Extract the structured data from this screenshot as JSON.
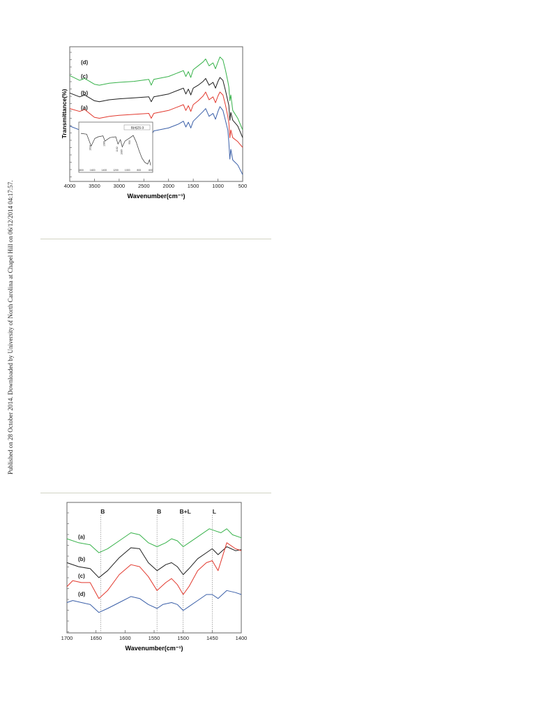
{
  "sidebar": {
    "text": "Published on 28 October 2014. Downloaded by University of North Carolina at Chapel Hill on 06/12/2014 04:17:57."
  },
  "chart_data": [
    {
      "type": "line",
      "xlabel": "Wavenumber(cm⁻¹)",
      "ylabel": "Transmittance(%)",
      "xlim": [
        4000,
        500
      ],
      "x_reversed": true,
      "xticks": [
        4000,
        3500,
        3000,
        2500,
        2000,
        1500,
        1000,
        500
      ],
      "grid": false,
      "colors": {
        "a": "#3a5fa8",
        "b": "#e2392e",
        "c": "#1e1e1e",
        "d": "#37b24a"
      },
      "series": [
        {
          "name": "(a)",
          "color": "#3a5fa8",
          "points": [
            [
              4000,
              42
            ],
            [
              3800,
              38
            ],
            [
              3700,
              40
            ],
            [
              3500,
              33
            ],
            [
              3400,
              32
            ],
            [
              3200,
              34
            ],
            [
              3000,
              35
            ],
            [
              2700,
              36
            ],
            [
              2400,
              37
            ],
            [
              2350,
              32
            ],
            [
              2300,
              37
            ],
            [
              2000,
              40
            ],
            [
              1800,
              44
            ],
            [
              1700,
              47
            ],
            [
              1650,
              41
            ],
            [
              1600,
              46
            ],
            [
              1550,
              40
            ],
            [
              1500,
              47
            ],
            [
              1400,
              52
            ],
            [
              1300,
              57
            ],
            [
              1250,
              60
            ],
            [
              1180,
              52
            ],
            [
              1100,
              55
            ],
            [
              1050,
              49
            ],
            [
              1000,
              57
            ],
            [
              960,
              62
            ],
            [
              900,
              58
            ],
            [
              850,
              48
            ],
            [
              800,
              38
            ],
            [
              780,
              25
            ],
            [
              760,
              8
            ],
            [
              740,
              18
            ],
            [
              700,
              7
            ],
            [
              600,
              2
            ],
            [
              500,
              -8
            ]
          ]
        },
        {
          "name": "(b)",
          "color": "#e2392e",
          "points": [
            [
              4000,
              60
            ],
            [
              3800,
              57
            ],
            [
              3700,
              59
            ],
            [
              3500,
              51
            ],
            [
              3400,
              50
            ],
            [
              3200,
              52
            ],
            [
              3000,
              53
            ],
            [
              2700,
              54
            ],
            [
              2400,
              55
            ],
            [
              2350,
              50
            ],
            [
              2300,
              55
            ],
            [
              2000,
              58
            ],
            [
              1800,
              62
            ],
            [
              1700,
              64
            ],
            [
              1650,
              58
            ],
            [
              1600,
              63
            ],
            [
              1550,
              57
            ],
            [
              1500,
              64
            ],
            [
              1400,
              68
            ],
            [
              1300,
              73
            ],
            [
              1250,
              77
            ],
            [
              1180,
              69
            ],
            [
              1100,
              72
            ],
            [
              1050,
              66
            ],
            [
              1000,
              73
            ],
            [
              960,
              77
            ],
            [
              900,
              74
            ],
            [
              850,
              64
            ],
            [
              800,
              52
            ],
            [
              780,
              45
            ],
            [
              760,
              30
            ],
            [
              740,
              38
            ],
            [
              700,
              30
            ],
            [
              600,
              26
            ],
            [
              500,
              20
            ]
          ]
        },
        {
          "name": "(c)",
          "color": "#1e1e1e",
          "points": [
            [
              4000,
              76
            ],
            [
              3800,
              72
            ],
            [
              3700,
              74
            ],
            [
              3500,
              68
            ],
            [
              3400,
              67
            ],
            [
              3200,
              69
            ],
            [
              3000,
              70
            ],
            [
              2700,
              71
            ],
            [
              2400,
              72
            ],
            [
              2350,
              67
            ],
            [
              2300,
              72
            ],
            [
              2000,
              75
            ],
            [
              1800,
              79
            ],
            [
              1700,
              81
            ],
            [
              1650,
              75
            ],
            [
              1600,
              80
            ],
            [
              1550,
              74
            ],
            [
              1500,
              81
            ],
            [
              1400,
              84
            ],
            [
              1300,
              88
            ],
            [
              1250,
              91
            ],
            [
              1180,
              84
            ],
            [
              1100,
              87
            ],
            [
              1050,
              81
            ],
            [
              1000,
              88
            ],
            [
              960,
              92
            ],
            [
              900,
              89
            ],
            [
              850,
              79
            ],
            [
              800,
              68
            ],
            [
              780,
              63
            ],
            [
              760,
              48
            ],
            [
              740,
              56
            ],
            [
              700,
              48
            ],
            [
              600,
              42
            ],
            [
              500,
              30
            ]
          ]
        },
        {
          "name": "(d)",
          "color": "#37b24a",
          "points": [
            [
              4000,
              94
            ],
            [
              3800,
              89
            ],
            [
              3700,
              91
            ],
            [
              3500,
              85
            ],
            [
              3400,
              84
            ],
            [
              3200,
              86
            ],
            [
              3000,
              87
            ],
            [
              2700,
              88
            ],
            [
              2400,
              90
            ],
            [
              2350,
              84
            ],
            [
              2300,
              90
            ],
            [
              2000,
              93
            ],
            [
              1800,
              97
            ],
            [
              1700,
              99
            ],
            [
              1650,
              93
            ],
            [
              1600,
              98
            ],
            [
              1550,
              92
            ],
            [
              1500,
              100
            ],
            [
              1400,
              104
            ],
            [
              1300,
              108
            ],
            [
              1250,
              111
            ],
            [
              1180,
              104
            ],
            [
              1100,
              107
            ],
            [
              1050,
              101
            ],
            [
              1000,
              108
            ],
            [
              960,
              113
            ],
            [
              900,
              110
            ],
            [
              850,
              100
            ],
            [
              800,
              88
            ],
            [
              780,
              82
            ],
            [
              760,
              68
            ],
            [
              740,
              74
            ],
            [
              700,
              58
            ],
            [
              600,
              50
            ],
            [
              500,
              38
            ]
          ]
        }
      ],
      "labels": [
        "(d)",
        "(c)",
        "(b)",
        "(a)"
      ],
      "inset": {
        "type": "line",
        "legend": "B(4)ZS-3",
        "tick_labels": [
          "1800",
          "1600",
          "1400",
          "1200",
          "1000",
          "800",
          "600"
        ],
        "peak_labels": [
          "1624",
          "1386",
          "1162",
          "1089",
          "950"
        ],
        "points": [
          [
            1800,
            80
          ],
          [
            1700,
            78
          ],
          [
            1624,
            50
          ],
          [
            1560,
            68
          ],
          [
            1500,
            72
          ],
          [
            1420,
            74
          ],
          [
            1386,
            62
          ],
          [
            1300,
            70
          ],
          [
            1200,
            72
          ],
          [
            1162,
            55
          ],
          [
            1120,
            65
          ],
          [
            1089,
            48
          ],
          [
            1040,
            62
          ],
          [
            950,
            70
          ],
          [
            900,
            75
          ],
          [
            850,
            60
          ],
          [
            800,
            40
          ],
          [
            750,
            22
          ],
          [
            700,
            12
          ],
          [
            650,
            8
          ],
          [
            620,
            18
          ],
          [
            600,
            5
          ]
        ]
      }
    },
    {
      "type": "line",
      "xlabel": "Wavenumber(cm⁻¹)",
      "ylabel": "",
      "xlim": [
        1700,
        1400
      ],
      "x_reversed": true,
      "xticks": [
        1700,
        1650,
        1600,
        1550,
        1500,
        1450,
        1400
      ],
      "grid": false,
      "markers": [
        {
          "x": 1642,
          "label": "B"
        },
        {
          "x": 1545,
          "label": "B"
        },
        {
          "x": 1500,
          "label": "B+L"
        },
        {
          "x": 1450,
          "label": "L"
        }
      ],
      "series": [
        {
          "name": "(a)",
          "color": "#37b24a",
          "points": [
            [
              1700,
              94
            ],
            [
              1680,
              90
            ],
            [
              1660,
              88
            ],
            [
              1645,
              80
            ],
            [
              1630,
              84
            ],
            [
              1610,
              92
            ],
            [
              1590,
              100
            ],
            [
              1575,
              98
            ],
            [
              1560,
              90
            ],
            [
              1545,
              86
            ],
            [
              1530,
              90
            ],
            [
              1520,
              94
            ],
            [
              1510,
              92
            ],
            [
              1500,
              86
            ],
            [
              1490,
              90
            ],
            [
              1475,
              96
            ],
            [
              1455,
              104
            ],
            [
              1445,
              102
            ],
            [
              1435,
              100
            ],
            [
              1425,
              104
            ],
            [
              1415,
              98
            ],
            [
              1400,
              95
            ]
          ]
        },
        {
          "name": "(b)",
          "color": "#1e1e1e",
          "points": [
            [
              1700,
              70
            ],
            [
              1680,
              66
            ],
            [
              1660,
              64
            ],
            [
              1645,
              55
            ],
            [
              1630,
              62
            ],
            [
              1610,
              75
            ],
            [
              1590,
              85
            ],
            [
              1575,
              84
            ],
            [
              1560,
              70
            ],
            [
              1545,
              62
            ],
            [
              1530,
              68
            ],
            [
              1520,
              70
            ],
            [
              1510,
              66
            ],
            [
              1500,
              58
            ],
            [
              1490,
              64
            ],
            [
              1475,
              74
            ],
            [
              1460,
              80
            ],
            [
              1450,
              84
            ],
            [
              1440,
              78
            ],
            [
              1425,
              86
            ],
            [
              1410,
              82
            ],
            [
              1400,
              83
            ]
          ]
        },
        {
          "name": "(c)",
          "color": "#e2392e",
          "points": [
            [
              1700,
              46
            ],
            [
              1690,
              52
            ],
            [
              1675,
              50
            ],
            [
              1660,
              50
            ],
            [
              1645,
              34
            ],
            [
              1630,
              42
            ],
            [
              1610,
              58
            ],
            [
              1590,
              68
            ],
            [
              1575,
              66
            ],
            [
              1560,
              56
            ],
            [
              1545,
              42
            ],
            [
              1530,
              50
            ],
            [
              1520,
              54
            ],
            [
              1510,
              48
            ],
            [
              1500,
              38
            ],
            [
              1490,
              46
            ],
            [
              1475,
              62
            ],
            [
              1460,
              70
            ],
            [
              1450,
              72
            ],
            [
              1440,
              62
            ],
            [
              1425,
              90
            ],
            [
              1410,
              84
            ],
            [
              1400,
              82
            ]
          ]
        },
        {
          "name": "(d)",
          "color": "#3a5fa8",
          "points": [
            [
              1700,
              30
            ],
            [
              1690,
              32
            ],
            [
              1675,
              30
            ],
            [
              1660,
              28
            ],
            [
              1645,
              20
            ],
            [
              1630,
              24
            ],
            [
              1610,
              30
            ],
            [
              1590,
              36
            ],
            [
              1575,
              34
            ],
            [
              1560,
              28
            ],
            [
              1545,
              24
            ],
            [
              1535,
              28
            ],
            [
              1520,
              30
            ],
            [
              1510,
              28
            ],
            [
              1500,
              22
            ],
            [
              1490,
              26
            ],
            [
              1475,
              32
            ],
            [
              1460,
              38
            ],
            [
              1450,
              38
            ],
            [
              1440,
              34
            ],
            [
              1425,
              42
            ],
            [
              1410,
              40
            ],
            [
              1400,
              38
            ]
          ]
        }
      ],
      "labels": [
        "(a)",
        "(b)",
        "(c)",
        "(d)"
      ]
    }
  ]
}
